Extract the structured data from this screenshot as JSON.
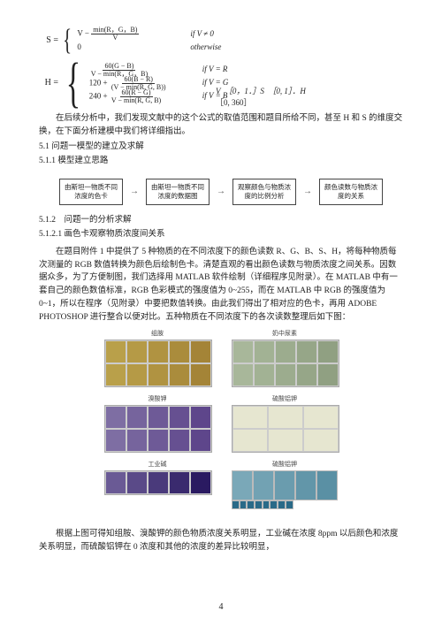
{
  "formula_s": {
    "lhs": "S =",
    "cases": [
      {
        "expr_html": "V − <span class='frac'><span class='num'>min(R，G，B)</span><span class='den'>V</span></span>",
        "cond": "if V ≠ 0"
      },
      {
        "expr_html": "0",
        "cond": "otherwise"
      }
    ]
  },
  "formula_h": {
    "lhs": "H =",
    "cases": [
      {
        "expr_html": "<span class='frac'><span class='num'>60(G − B)</span><span class='den'>V − min(R，G，B)</span></span>",
        "cond": "if V = R"
      },
      {
        "expr_html": "120 + <span class='frac'><span class='num'>60(B − R)</span><span class='den'>(V − min(R, G, B))</span></span>",
        "cond": "if V = G"
      },
      {
        "expr_html": "240 + <span class='frac'><span class='num'>60(R − G)</span><span class='den'>V − min(R, G, B)</span></span>",
        "cond": "if V = B"
      }
    ]
  },
  "ranges": {
    "line1": "V　［0，1．］S　［0, 1］．H",
    "line2": "［0, 360］"
  },
  "para1": "在后续分析中，我们发现文献中的这个公式的取值范围和题目所给不同，甚至 H 和 S 的维度交换，在下面分析建模中我们将详细指出。",
  "h51": "5.1 问题一模型的建立及求解",
  "h511": "5.1.1 模型建立思路",
  "flow": {
    "b1": "由斯坦一物质不同\n浓度的色卡",
    "b2": "由斯坦一物质不同\n浓度的数据图",
    "b3": "观察颜色与物质浓\n度的比例分析",
    "b4": "颜色读数与物质浓\n度的关系"
  },
  "h512": "5.1.2　问题一的分析求解",
  "h5121": "5.1.2.1 画色卡观察物质浓度间关系",
  "para2": "在题目附件 1 中提供了 5 种物质的在不同浓度下的颜色读数 R、G、B、S、H，将每种物质每次测量的 RGB 数值转换为颜色后绘制色卡。清楚直观的看出颜色读数与物质浓度之间关系。因数据众多，为了方便制图，我们选择用 MATLAB 软件绘制（详细程序见附录）。在 MATLAB 中有一套自己的颜色数值标准，RGB 色彩模式的强度值为 0~255，而在 MATLAB 中 RGB 的强度值为 0~1，所以在程序（见附录）中要把数值转换。由此我们得出了相对应的色卡，再用 ADOBE PHOTOSHOP 进行整合以便对比。五种物质在不同浓度下的各次读数整理后如下图：",
  "charts": {
    "c1": {
      "title": "组胺",
      "colors": [
        "#b9a04a",
        "#b59a46",
        "#b09341",
        "#aa8c3c",
        "#a48437",
        "#b9a04a",
        "#b59a46",
        "#b09341",
        "#aa8c3c",
        "#a48437"
      ]
    },
    "c2": {
      "title": "奶中尿素",
      "colors": [
        "#a8b79a",
        "#a2b294",
        "#9cac8e",
        "#96a688",
        "#90a082",
        "#a8b79a",
        "#a2b294",
        "#9cac8e",
        "#96a688",
        "#90a082"
      ]
    },
    "c3": {
      "title": "溴酸钾",
      "colors": [
        "#7e6ea3",
        "#76649d",
        "#6e5a97",
        "#665091",
        "#5e468b",
        "#7e6ea3",
        "#76649d",
        "#6e5a97",
        "#665091",
        "#5e468b"
      ]
    },
    "c4": {
      "title": "硫酸铝钾",
      "colors": [
        "#e6e6d0",
        "#e6e6d0",
        "#e6e6d0",
        "#e6e6d0",
        "#e6e6d0",
        "#e6e6d0"
      ]
    },
    "c5": {
      "title": "工业碱",
      "colors": [
        "#6a5a95",
        "#5a4a88",
        "#4a3a7b",
        "#3a2a6e",
        "#2a1a61"
      ]
    },
    "c6": {
      "title": "硫酸铝钾",
      "top": [
        "#7aa8b8",
        "#72a2b3",
        "#6a9cae",
        "#6296a9",
        "#5a90a4"
      ],
      "bottom": [
        "#2a6a88",
        "#2a6a88",
        "#2a6a88",
        "#2a6a88",
        "#2a6a88",
        "#2a6a88",
        "#2a6a88",
        "#2a6a88"
      ]
    },
    "xticks": [
      "0",
      "20",
      "40",
      "60",
      "80"
    ]
  },
  "para3": "根据上图可得知组胺、溴酸钾的颜色物质浓度关系明显，工业碱在浓度 8ppm 以后颜色和浓度关系明显，而硫酸铝钾在 0 浓度和其他的浓度的差异比较明显，",
  "page_number": "4"
}
